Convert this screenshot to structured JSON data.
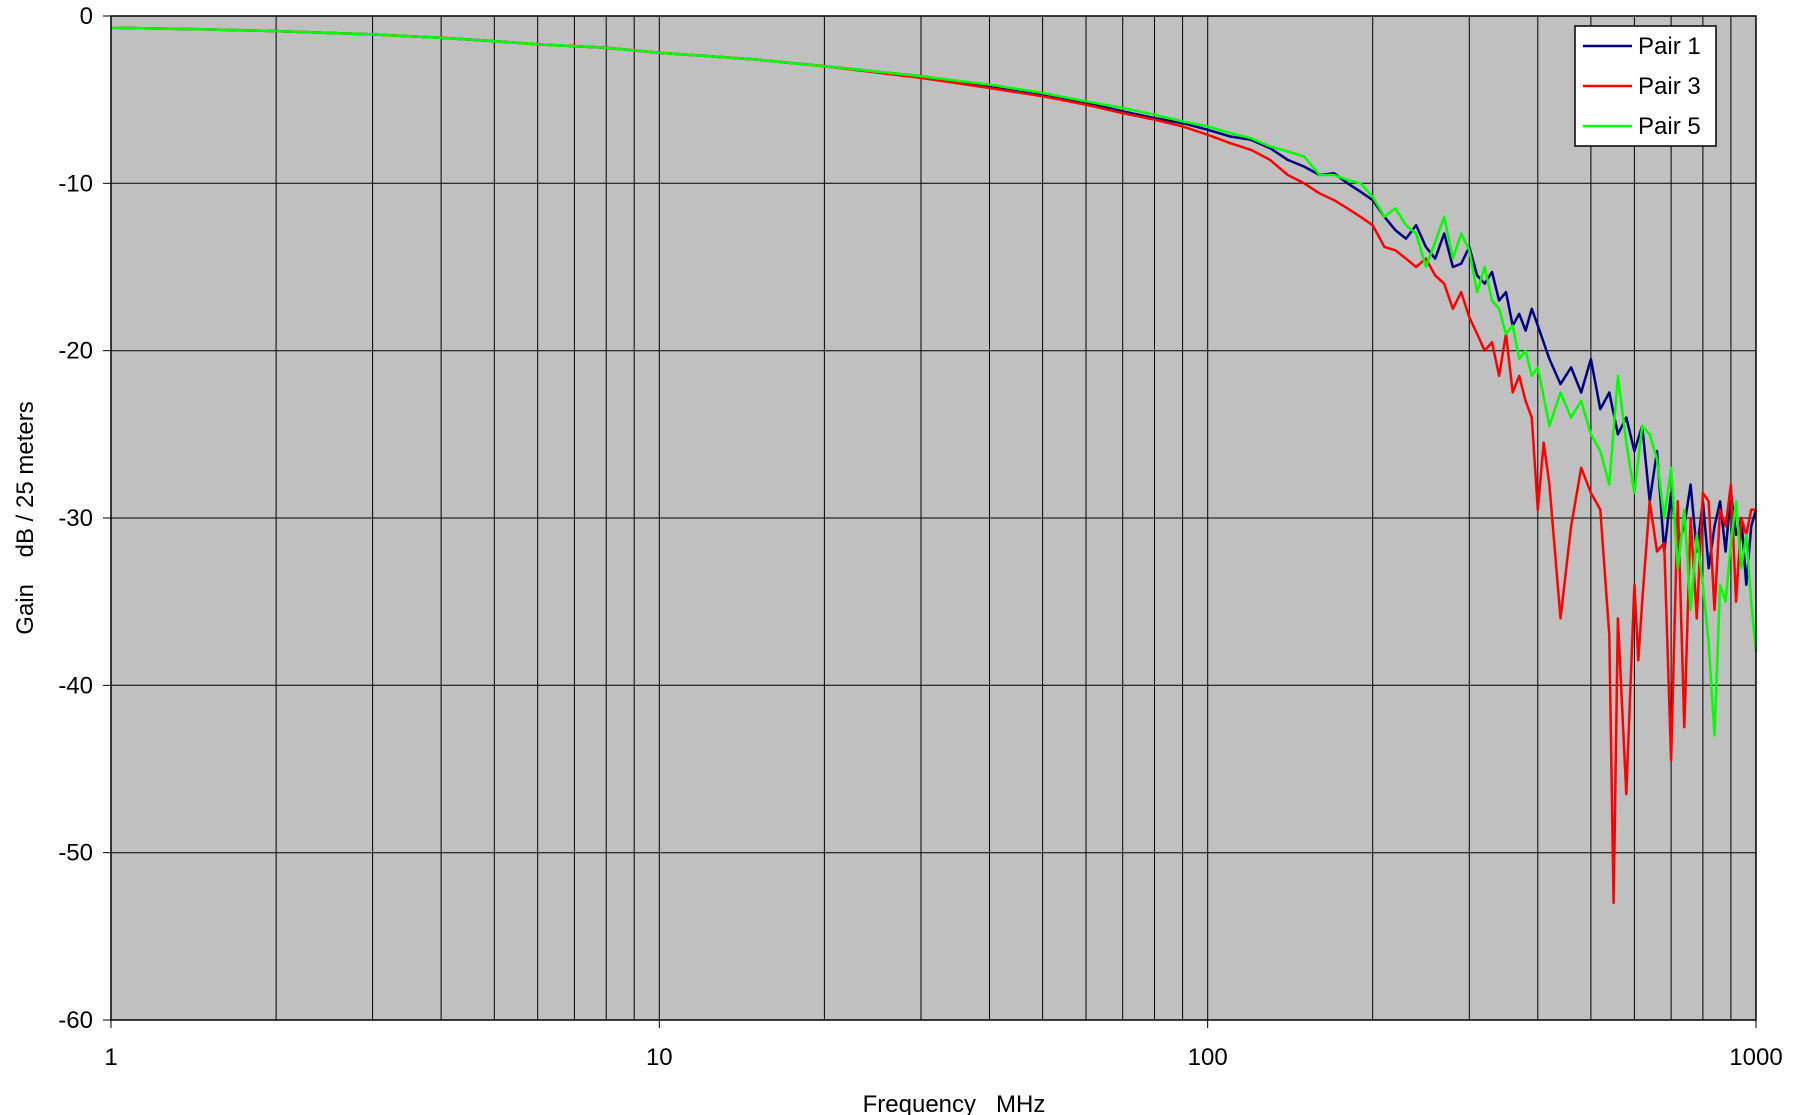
{
  "chart_data": {
    "type": "line",
    "xlabel": "Frequency   MHz",
    "ylabel": "Gain    dB / 25 meters",
    "x_scale": "log",
    "xlim": [
      1,
      1000
    ],
    "ylim": [
      -60,
      0
    ],
    "x_ticks": [
      "1",
      "10",
      "100",
      "1000"
    ],
    "y_ticks": [
      "0",
      "-10",
      "-20",
      "-30",
      "-40",
      "-50",
      "-60"
    ],
    "grid": true,
    "legend_position": "top-right",
    "plot_background": "#c0c0c0",
    "series": [
      {
        "name": "Pair 1",
        "color": "#000080",
        "x": [
          1,
          1.5,
          2,
          3,
          4,
          5,
          6,
          8,
          10,
          15,
          20,
          30,
          40,
          50,
          60,
          70,
          80,
          90,
          100,
          110,
          120,
          130,
          140,
          150,
          160,
          170,
          180,
          190,
          200,
          210,
          220,
          230,
          240,
          250,
          260,
          270,
          280,
          290,
          300,
          310,
          320,
          330,
          340,
          350,
          360,
          370,
          380,
          390,
          400,
          420,
          440,
          460,
          480,
          500,
          520,
          540,
          560,
          580,
          600,
          620,
          640,
          660,
          680,
          700,
          720,
          740,
          760,
          780,
          800,
          820,
          840,
          860,
          880,
          900,
          920,
          940,
          960,
          980,
          1000
        ],
        "y": [
          -0.7,
          -0.8,
          -0.9,
          -1.1,
          -1.3,
          -1.5,
          -1.7,
          -1.9,
          -2.2,
          -2.6,
          -3.0,
          -3.6,
          -4.2,
          -4.7,
          -5.2,
          -5.7,
          -6.1,
          -6.4,
          -6.8,
          -7.2,
          -7.4,
          -7.9,
          -8.6,
          -9.0,
          -9.5,
          -9.4,
          -10.0,
          -10.5,
          -11.0,
          -12.0,
          -12.8,
          -13.3,
          -12.5,
          -13.8,
          -14.5,
          -13.0,
          -15.0,
          -14.8,
          -13.8,
          -15.5,
          -16.0,
          -15.3,
          -17.0,
          -16.5,
          -18.5,
          -17.8,
          -18.8,
          -17.5,
          -18.5,
          -20.5,
          -22.0,
          -21.0,
          -22.5,
          -20.5,
          -23.5,
          -22.5,
          -25.0,
          -24.0,
          -26.0,
          -24.5,
          -29.0,
          -26.0,
          -32.0,
          -28.5,
          -31.5,
          -30.5,
          -28.0,
          -32.0,
          -29.0,
          -33.0,
          -30.5,
          -29.0,
          -32.0,
          -28.5,
          -31.0,
          -30.0,
          -34.0,
          -30.5,
          -29.5
        ]
      },
      {
        "name": "Pair 3",
        "color": "#ff0000",
        "x": [
          1,
          1.5,
          2,
          3,
          4,
          5,
          6,
          8,
          10,
          15,
          20,
          30,
          40,
          50,
          60,
          70,
          80,
          90,
          100,
          110,
          120,
          130,
          140,
          150,
          160,
          170,
          180,
          190,
          200,
          210,
          220,
          230,
          240,
          250,
          260,
          270,
          280,
          290,
          300,
          310,
          320,
          330,
          340,
          350,
          360,
          370,
          380,
          390,
          400,
          410,
          420,
          440,
          460,
          480,
          500,
          520,
          540,
          550,
          560,
          580,
          600,
          610,
          620,
          640,
          660,
          680,
          700,
          720,
          740,
          760,
          780,
          800,
          820,
          840,
          860,
          880,
          900,
          920,
          940,
          960,
          980,
          1000
        ],
        "y": [
          -0.7,
          -0.8,
          -0.9,
          -1.1,
          -1.3,
          -1.5,
          -1.7,
          -1.9,
          -2.2,
          -2.6,
          -3.0,
          -3.7,
          -4.3,
          -4.8,
          -5.3,
          -5.8,
          -6.2,
          -6.6,
          -7.1,
          -7.6,
          -8.0,
          -8.6,
          -9.5,
          -10.0,
          -10.6,
          -11.0,
          -11.5,
          -12.0,
          -12.5,
          -13.8,
          -14.0,
          -14.5,
          -15.0,
          -14.5,
          -15.5,
          -16.0,
          -17.5,
          -16.5,
          -18.0,
          -19.0,
          -20.0,
          -19.5,
          -21.5,
          -19.0,
          -22.5,
          -21.5,
          -23.0,
          -24.0,
          -29.5,
          -25.5,
          -28.0,
          -36.0,
          -30.5,
          -27.0,
          -28.5,
          -29.5,
          -37.0,
          -53.0,
          -36.0,
          -46.5,
          -34.0,
          -38.5,
          -35.0,
          -29.0,
          -32.0,
          -31.5,
          -44.5,
          -29.0,
          -42.5,
          -30.0,
          -36.0,
          -28.5,
          -29.0,
          -35.5,
          -29.5,
          -30.5,
          -28.0,
          -35.0,
          -30.0,
          -31.0,
          -29.5,
          -29.5
        ]
      },
      {
        "name": "Pair 5",
        "color": "#00ff00",
        "x": [
          1,
          1.5,
          2,
          3,
          4,
          5,
          6,
          8,
          10,
          15,
          20,
          30,
          40,
          50,
          60,
          70,
          80,
          90,
          100,
          110,
          120,
          130,
          140,
          150,
          160,
          170,
          180,
          190,
          200,
          210,
          220,
          230,
          240,
          250,
          260,
          270,
          280,
          290,
          300,
          310,
          320,
          330,
          340,
          350,
          360,
          370,
          380,
          390,
          400,
          420,
          440,
          460,
          480,
          500,
          520,
          540,
          560,
          580,
          600,
          620,
          640,
          660,
          680,
          700,
          720,
          740,
          760,
          780,
          800,
          820,
          840,
          860,
          880,
          900,
          920,
          940,
          960,
          980,
          1000
        ],
        "y": [
          -0.7,
          -0.8,
          -0.9,
          -1.1,
          -1.3,
          -1.5,
          -1.7,
          -1.9,
          -2.2,
          -2.6,
          -3.0,
          -3.6,
          -4.1,
          -4.6,
          -5.1,
          -5.5,
          -5.9,
          -6.3,
          -6.6,
          -7.0,
          -7.3,
          -7.8,
          -8.1,
          -8.4,
          -9.5,
          -9.5,
          -9.8,
          -10.0,
          -10.8,
          -12.0,
          -11.5,
          -12.5,
          -13.0,
          -15.0,
          -13.5,
          -12.0,
          -14.5,
          -13.0,
          -14.0,
          -16.5,
          -15.0,
          -17.0,
          -17.5,
          -19.0,
          -18.5,
          -20.5,
          -20.0,
          -21.5,
          -21.0,
          -24.5,
          -22.5,
          -24.0,
          -23.0,
          -25.0,
          -26.0,
          -28.0,
          -21.5,
          -25.5,
          -28.5,
          -24.5,
          -25.0,
          -26.5,
          -30.0,
          -27.0,
          -33.0,
          -29.5,
          -35.5,
          -31.0,
          -34.0,
          -37.5,
          -43.0,
          -34.0,
          -35.0,
          -31.5,
          -29.0,
          -33.0,
          -31.0,
          -35.0,
          -38.0
        ]
      }
    ]
  }
}
